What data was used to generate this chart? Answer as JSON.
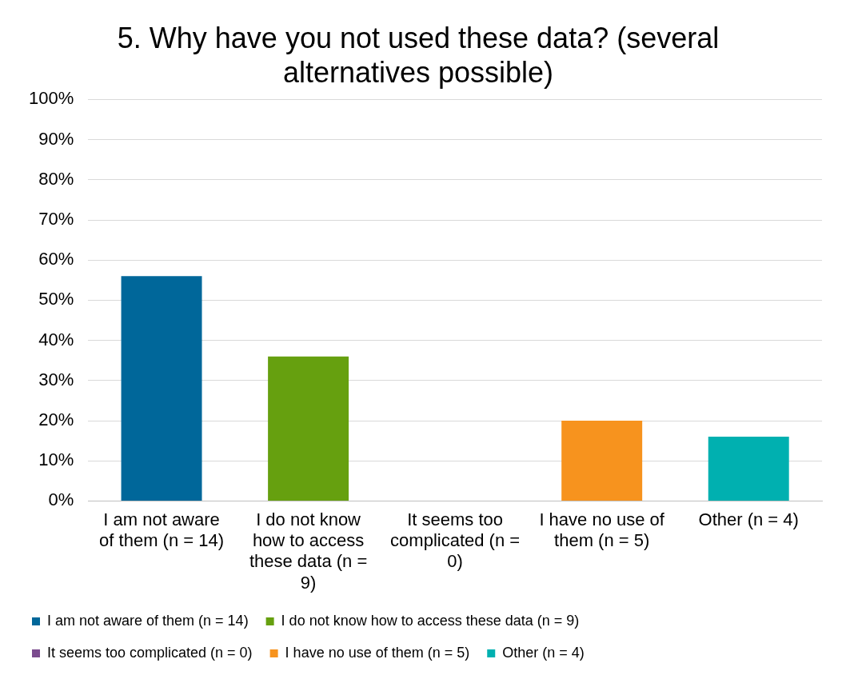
{
  "chart_data": {
    "type": "bar",
    "title": "5. Why have you not used these data? (several alternatives possible)",
    "categories": [
      "I am not aware of them (n = 14)",
      "I do not know how to access these data (n = 9)",
      "It seems too complicated (n = 0)",
      "I have no use of them (n = 5)",
      "Other (n = 4)"
    ],
    "series": [
      {
        "name": "I am not aware of them (n = 14)",
        "color": "#00679a",
        "values": [
          56,
          null,
          null,
          null,
          null
        ]
      },
      {
        "name": "I do not know how to access these data (n = 9)",
        "color": "#66a00f",
        "values": [
          null,
          36,
          null,
          null,
          null
        ]
      },
      {
        "name": "It seems too complicated (n = 0)",
        "color": "#7b4b8e",
        "values": [
          null,
          null,
          0,
          null,
          null
        ]
      },
      {
        "name": "I have no use of them (n = 5)",
        "color": "#f7931e",
        "values": [
          null,
          null,
          null,
          20,
          null
        ]
      },
      {
        "name": "Other (n = 4)",
        "color": "#00b0b0",
        "values": [
          null,
          null,
          null,
          null,
          16
        ]
      }
    ],
    "ylim": [
      0,
      100
    ],
    "yticks": [
      {
        "value": 0,
        "label": "0%"
      },
      {
        "value": 10,
        "label": "10%"
      },
      {
        "value": 20,
        "label": "20%"
      },
      {
        "value": 30,
        "label": "30%"
      },
      {
        "value": 40,
        "label": "40%"
      },
      {
        "value": 50,
        "label": "50%"
      },
      {
        "value": 60,
        "label": "60%"
      },
      {
        "value": 70,
        "label": "70%"
      },
      {
        "value": 80,
        "label": "80%"
      },
      {
        "value": 90,
        "label": "90%"
      },
      {
        "value": 100,
        "label": "100%"
      }
    ],
    "grid": "y",
    "legend": "bottom"
  }
}
